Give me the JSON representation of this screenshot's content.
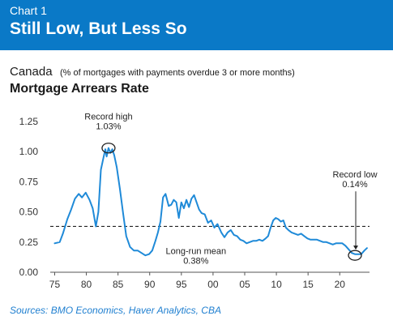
{
  "header": {
    "chart_number": "Chart 1",
    "title": "Still Low, But Less So"
  },
  "subtitle": {
    "region": "Canada",
    "note": "(% of mortgages with payments overdue 3 or more months)"
  },
  "chart_heading": "Mortgage Arrears Rate",
  "source": "Sources: BMO Economics, Haver Analytics, CBA",
  "colors": {
    "header_bg": "#0a79c7",
    "line": "#1f8ad8",
    "axis": "#555555",
    "source_text": "#1f7fd0"
  },
  "chart_data": {
    "type": "line",
    "x_tick_labels": [
      "75",
      "80",
      "85",
      "90",
      "95",
      "00",
      "05",
      "10",
      "15",
      "20"
    ],
    "x_ticks": [
      1975,
      1980,
      1985,
      1990,
      1995,
      2000,
      2005,
      2010,
      2015,
      2020
    ],
    "y_tick_labels": [
      "0.00",
      "0.25",
      "0.50",
      "0.75",
      "1.00",
      "1.25"
    ],
    "y_ticks": [
      0,
      0.25,
      0.5,
      0.75,
      1.0,
      1.25
    ],
    "xlim": [
      1974.3,
      2024.7
    ],
    "ylim": [
      0,
      1.25
    ],
    "grid": false,
    "series": [
      {
        "x": [
          1975.0,
          1975.8,
          1976.3,
          1977.0,
          1977.6,
          1978.2,
          1978.8,
          1979.3,
          1979.9,
          1980.5,
          1981.0,
          1981.5,
          1981.9,
          1982.3,
          1982.7,
          1983.0,
          1983.2,
          1983.5,
          1983.8,
          1984.1,
          1984.4,
          1984.8,
          1985.3,
          1985.8,
          1986.3,
          1986.9,
          1987.5,
          1988.1,
          1988.7,
          1989.3,
          1989.9,
          1990.4,
          1990.9,
          1991.3,
          1991.7,
          1992.1,
          1992.5,
          1993.0,
          1993.4,
          1993.8,
          1994.2,
          1994.6,
          1995.0,
          1995.4,
          1995.8,
          1996.2,
          1996.6,
          1997.0,
          1997.4,
          1997.8,
          1998.2,
          1998.7,
          1999.2,
          1999.7,
          2000.2,
          2000.7,
          2001.3,
          2001.8,
          2002.3,
          2002.8,
          2003.3,
          2003.8,
          2004.3,
          2004.8,
          2005.3,
          2005.8,
          2006.3,
          2006.8,
          2007.3,
          2007.8,
          2008.3,
          2008.7,
          2009.1,
          2009.5,
          2009.9,
          2010.3,
          2010.7,
          2011.1,
          2011.5,
          2011.9,
          2012.4,
          2012.9,
          2013.4,
          2013.9,
          2014.4,
          2014.9,
          2015.4,
          2015.9,
          2016.4,
          2016.9,
          2017.4,
          2017.9,
          2018.4,
          2018.9,
          2019.4,
          2019.9,
          2020.4,
          2020.9,
          2021.4,
          2021.9,
          2022.4,
          2022.9,
          2023.4,
          2023.9,
          2024.3
        ],
        "y": [
          0.24,
          0.25,
          0.32,
          0.44,
          0.52,
          0.61,
          0.65,
          0.62,
          0.66,
          0.6,
          0.53,
          0.38,
          0.5,
          0.85,
          0.95,
          1.02,
          0.96,
          1.03,
          0.99,
          1.02,
          0.97,
          0.87,
          0.69,
          0.49,
          0.3,
          0.21,
          0.18,
          0.18,
          0.16,
          0.14,
          0.15,
          0.18,
          0.26,
          0.33,
          0.42,
          0.62,
          0.65,
          0.55,
          0.56,
          0.6,
          0.58,
          0.45,
          0.58,
          0.53,
          0.6,
          0.54,
          0.61,
          0.64,
          0.58,
          0.52,
          0.49,
          0.48,
          0.41,
          0.43,
          0.37,
          0.4,
          0.33,
          0.29,
          0.33,
          0.35,
          0.31,
          0.3,
          0.27,
          0.26,
          0.24,
          0.25,
          0.26,
          0.26,
          0.27,
          0.26,
          0.28,
          0.3,
          0.37,
          0.43,
          0.45,
          0.44,
          0.42,
          0.43,
          0.37,
          0.35,
          0.33,
          0.32,
          0.31,
          0.32,
          0.3,
          0.28,
          0.27,
          0.27,
          0.27,
          0.26,
          0.25,
          0.25,
          0.24,
          0.23,
          0.24,
          0.24,
          0.24,
          0.22,
          0.19,
          0.16,
          0.15,
          0.15,
          0.15,
          0.18,
          0.2
        ]
      }
    ],
    "reference_line": {
      "y": 0.38,
      "style": "dashed"
    },
    "annotations": [
      {
        "line1": "Record high",
        "line2": "1.03%",
        "x": 1983.5,
        "y": 1.03,
        "circled": true
      },
      {
        "line1": "Record low",
        "line2": "0.14%",
        "x": 2022.4,
        "y": 0.14,
        "circled": true,
        "arrow": true
      },
      {
        "line1": "Long-run mean",
        "line2": "0.38%",
        "x": 1997.3,
        "y": 0.38
      }
    ]
  }
}
